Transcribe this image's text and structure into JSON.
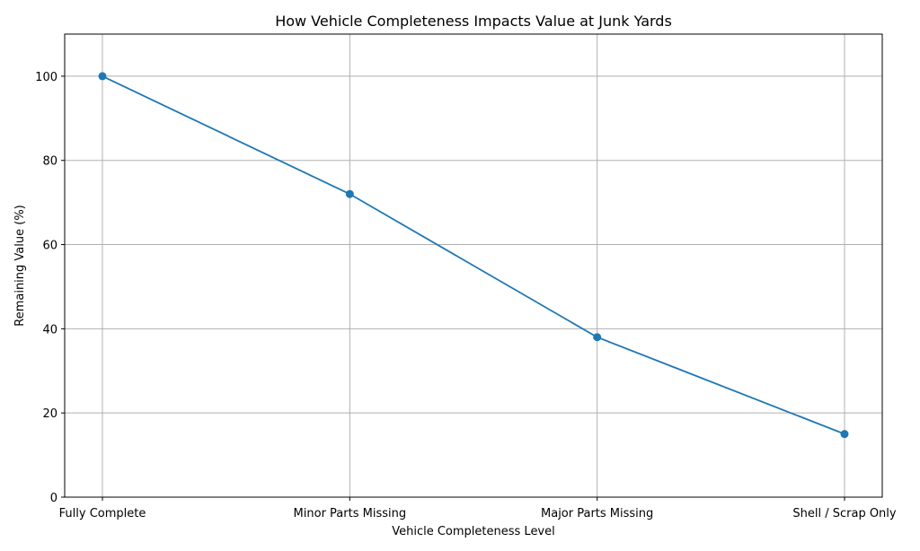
{
  "chart_data": {
    "type": "line",
    "title": "How Vehicle Completeness Impacts Value at Junk Yards",
    "xlabel": "Vehicle Completeness Level",
    "ylabel": "Remaining Value (%)",
    "categories": [
      "Fully Complete",
      "Minor Parts Missing",
      "Major Parts Missing",
      "Shell / Scrap Only"
    ],
    "series": [
      {
        "name": "Remaining Value",
        "values": [
          100,
          72,
          38,
          15
        ],
        "color": "#1f77b4",
        "marker": "circle"
      }
    ],
    "ylim": [
      0,
      110
    ],
    "yticks": [
      0,
      20,
      40,
      60,
      80,
      100
    ],
    "grid": true,
    "legend": null
  }
}
